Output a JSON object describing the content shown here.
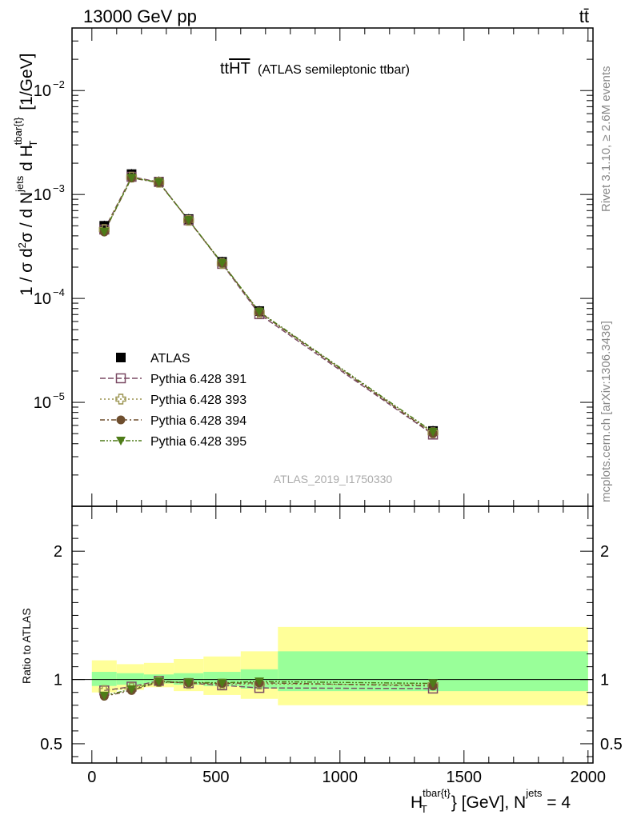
{
  "header": {
    "energy": "13000 GeV pp",
    "process": "tt̄"
  },
  "side": {
    "rivet": "Rivet 3.1.10, ≥ 2.6M events",
    "site": "mcplots.cern.ch [arXiv:1306.3436]"
  },
  "title": {
    "main": "ttHT",
    "main_prefix": "tt",
    "main_overline": "HT",
    "sub": "(ATLAS semileptonic ttbar)"
  },
  "watermark": "ATLAS_2019_I1750330",
  "ylabel_main": "1 / σ d²σ / d N^jets d H_T^tbar{t} [1/GeV]",
  "ylabel_ratio": "Ratio to ATLAS",
  "xlabel": "H_T^tbar{t} [GeV], N^jets = 4",
  "colors": {
    "data": "#000000",
    "s391": "#7a4a64",
    "s393": "#9b9450",
    "s394": "#6e4e2e",
    "s395": "#4e7c18",
    "band_inner": "#99ff99",
    "band_outer": "#ffff99"
  },
  "chart_data": [
    {
      "type": "scatter",
      "panel": "main",
      "yscale": "log",
      "xlim": [
        -80,
        2020
      ],
      "ylim": [
        1e-06,
        0.04
      ],
      "yticks": [
        {
          "value": 1e-05,
          "label": "10",
          "exp": "−5"
        },
        {
          "value": 0.0001,
          "label": "10",
          "exp": "−4"
        },
        {
          "value": 0.001,
          "label": "10",
          "exp": "−3"
        },
        {
          "value": 0.01,
          "label": "10",
          "exp": "−2"
        }
      ],
      "bin_edges": [
        0,
        100,
        210,
        330,
        450,
        600,
        750,
        2000
      ],
      "x": [
        50,
        160,
        270,
        390,
        525,
        675,
        1375
      ],
      "legend_position": "middle-left",
      "series": [
        {
          "name": "ATLAS",
          "marker": "filled-square",
          "values": [
            0.0005,
            0.00157,
            0.00133,
            0.00058,
            0.000225,
            7.55e-05,
            5.3e-06
          ]
        },
        {
          "name": "Pythia 6.428 391",
          "marker": "open-square",
          "line": "dash",
          "values": [
            0.00046,
            0.00148,
            0.00132,
            0.000565,
            0.000215,
            7.05e-05,
            4.9e-06
          ]
        },
        {
          "name": "Pythia 6.428 393",
          "marker": "open-cross",
          "line": "dot",
          "values": [
            0.00046,
            0.00147,
            0.00131,
            0.000563,
            0.000217,
            7.28e-05,
            5.1e-06
          ]
        },
        {
          "name": "Pythia 6.428 394",
          "marker": "filled-circle",
          "line": "dashdot",
          "values": [
            0.000435,
            0.00144,
            0.0013,
            0.000565,
            0.000218,
            7.35e-05,
            5e-06
          ]
        },
        {
          "name": "Pythia 6.428 395",
          "marker": "filled-triangle-down",
          "line": "dashdotdot",
          "values": [
            0.000438,
            0.00145,
            0.00131,
            0.000567,
            0.000219,
            7.45e-05,
            5.2e-06
          ]
        }
      ]
    },
    {
      "type": "scatter",
      "panel": "ratio",
      "xlim": [
        -80,
        2020
      ],
      "ylim": [
        0.35,
        2.35
      ],
      "yticks": [
        0.5,
        1,
        2
      ],
      "xticks": [
        0,
        500,
        1000,
        1500,
        2000
      ],
      "bands": [
        {
          "x0": 0,
          "x1": 100,
          "inner": [
            0.95,
            1.06
          ],
          "outer": [
            0.9,
            1.15
          ]
        },
        {
          "x0": 100,
          "x1": 210,
          "inner": [
            0.96,
            1.05
          ],
          "outer": [
            0.92,
            1.12
          ]
        },
        {
          "x0": 210,
          "x1": 330,
          "inner": [
            0.97,
            1.04
          ],
          "outer": [
            0.94,
            1.13
          ]
        },
        {
          "x0": 330,
          "x1": 450,
          "inner": [
            0.96,
            1.05
          ],
          "outer": [
            0.91,
            1.16
          ]
        },
        {
          "x0": 450,
          "x1": 600,
          "inner": [
            0.95,
            1.06
          ],
          "outer": [
            0.88,
            1.18
          ]
        },
        {
          "x0": 600,
          "x1": 750,
          "inner": [
            0.93,
            1.08
          ],
          "outer": [
            0.85,
            1.22
          ]
        },
        {
          "x0": 750,
          "x1": 2000,
          "inner": [
            0.91,
            1.22
          ],
          "outer": [
            0.8,
            1.41
          ]
        }
      ],
      "x": [
        50,
        160,
        270,
        390,
        525,
        675,
        1375
      ],
      "series": [
        {
          "name": "Pythia 6.428 391",
          "values": [
            0.915,
            0.945,
            0.99,
            0.972,
            0.955,
            0.935,
            0.93
          ]
        },
        {
          "name": "Pythia 6.428 393",
          "values": [
            0.915,
            0.935,
            0.985,
            0.97,
            0.965,
            0.965,
            0.96
          ]
        },
        {
          "name": "Pythia 6.428 394",
          "values": [
            0.87,
            0.915,
            0.98,
            0.975,
            0.97,
            0.975,
            0.95
          ]
        },
        {
          "name": "Pythia 6.428 395",
          "values": [
            0.875,
            0.925,
            0.985,
            0.978,
            0.975,
            0.985,
            0.97
          ]
        }
      ]
    }
  ]
}
